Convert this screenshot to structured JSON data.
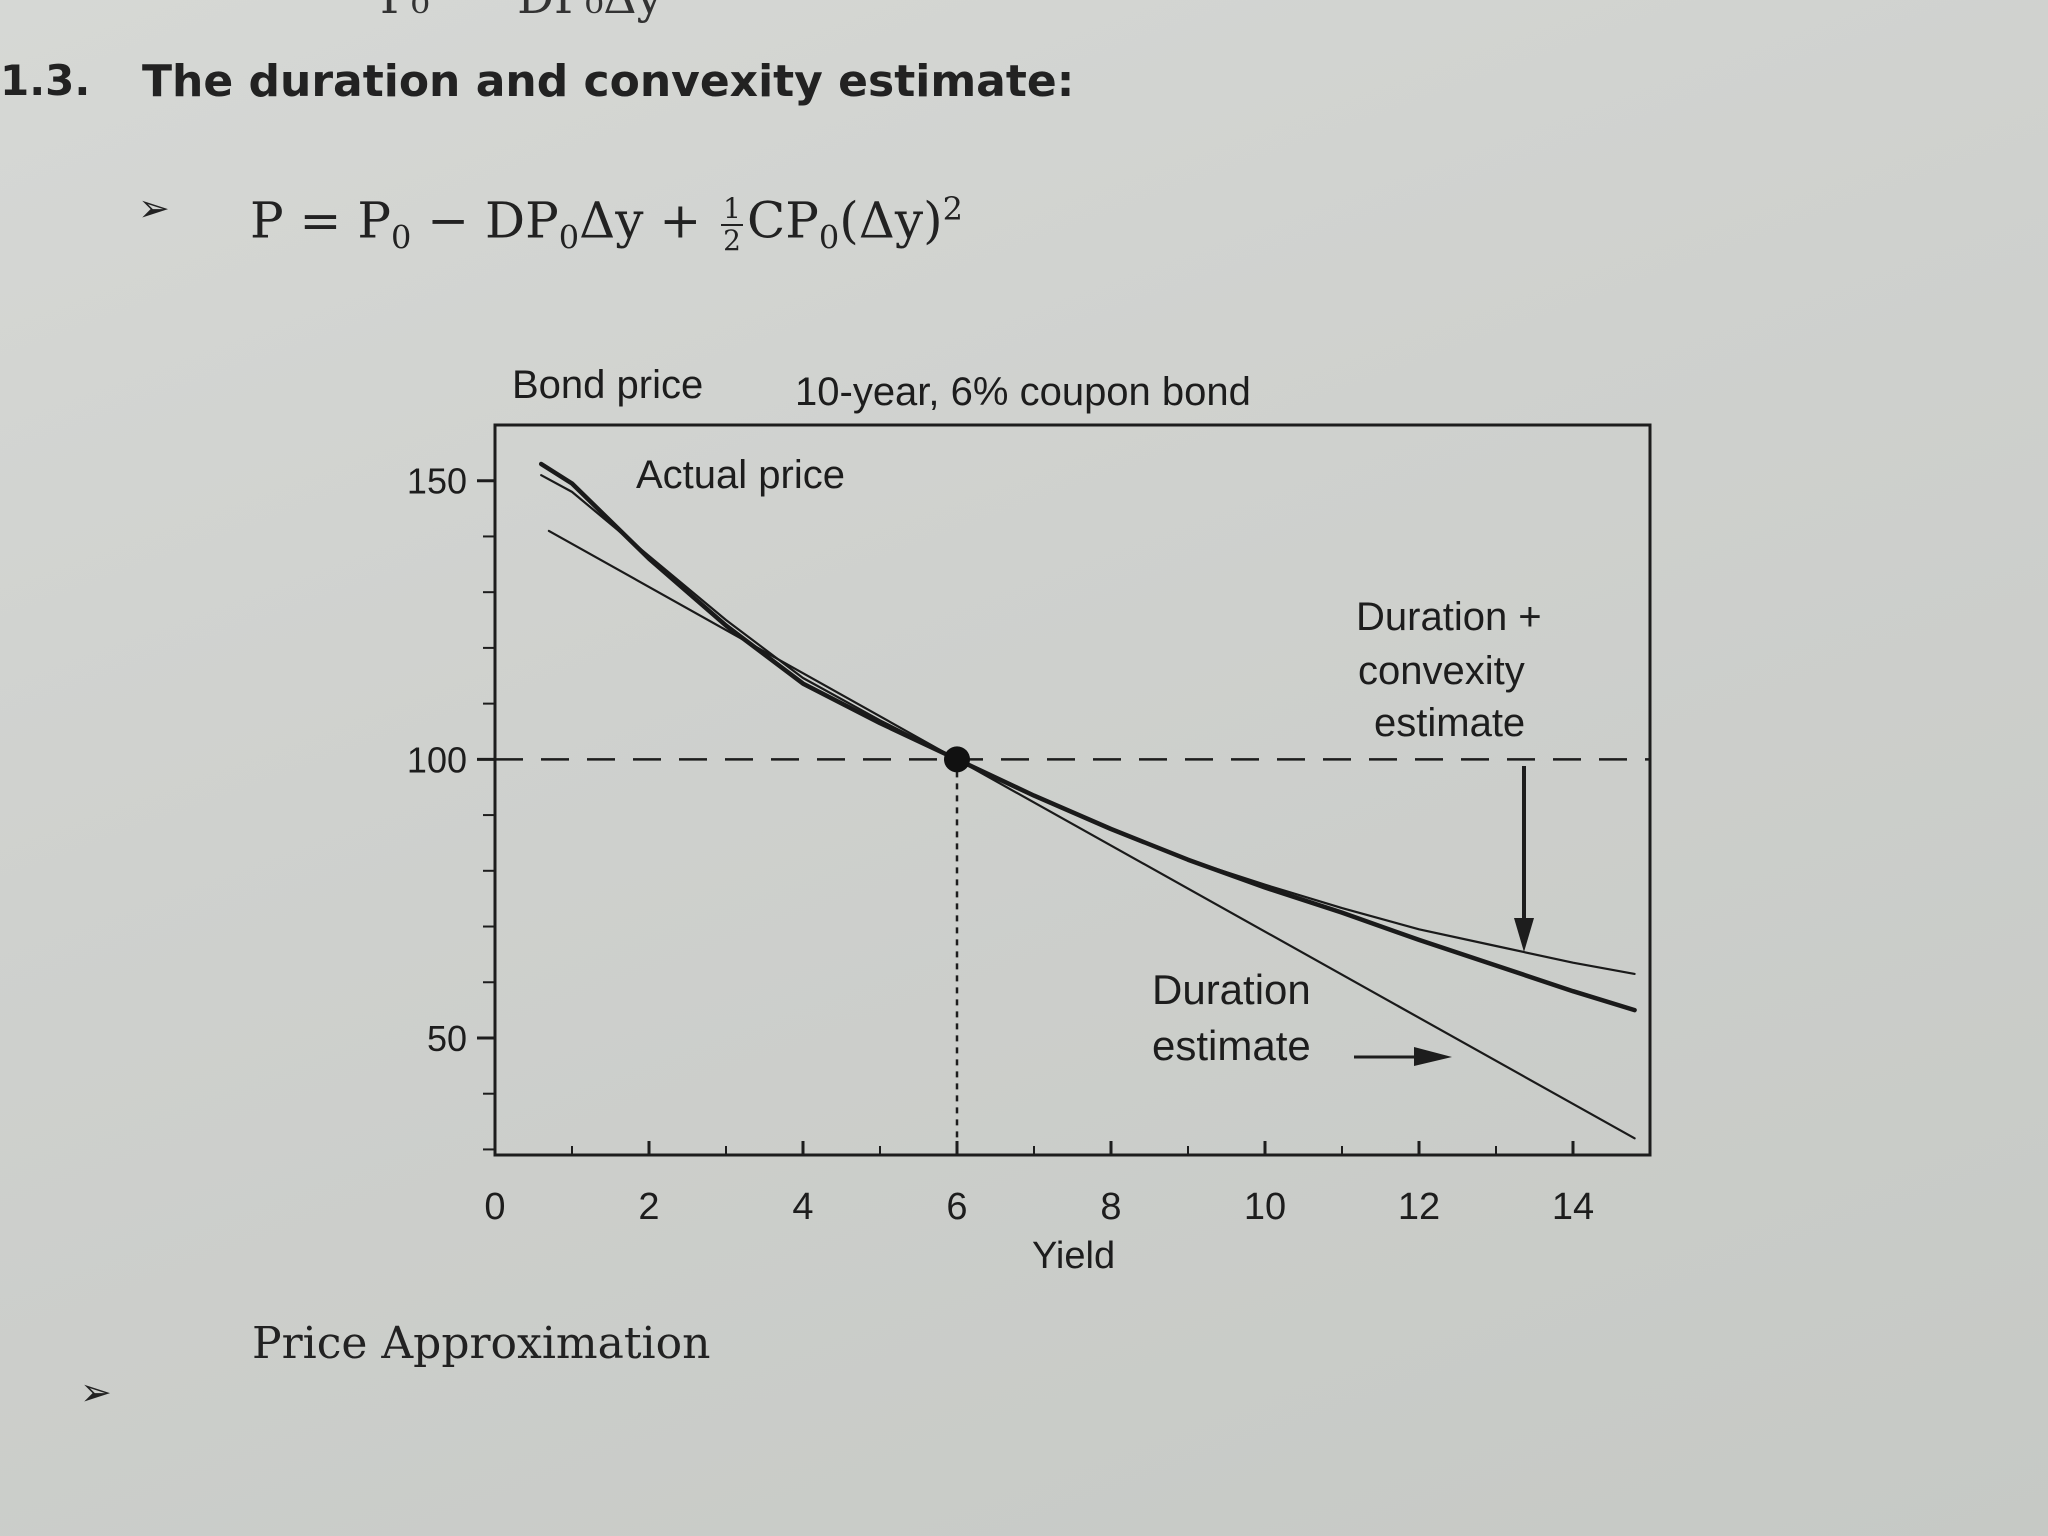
{
  "page": {
    "section_number": "1.3.",
    "section_title": "The duration and convexity estimate:",
    "formula": {
      "lhs": "P = P",
      "lhs_sub": "0",
      "minus": " − DP",
      "minus_sub": "0",
      "dy": "Δy + ",
      "frac_num": "1",
      "frac_den": "2",
      "cp": "CP",
      "cp_sub": "0",
      "tail": "(Δy)",
      "tail_sup": "2"
    },
    "caption": "Price Approximation"
  },
  "chart_data": {
    "type": "line",
    "ylabel": "Bond price",
    "title": "10-year, 6% coupon bond",
    "xlabel": "Yield",
    "x_ticks": [
      0,
      2,
      4,
      6,
      8,
      10,
      12,
      14
    ],
    "y_ticks": [
      50,
      100,
      150
    ],
    "xlim": [
      0,
      15
    ],
    "ylim": [
      29,
      160
    ],
    "reference": {
      "x": 6,
      "y": 100
    },
    "annotations": {
      "actual": "Actual price",
      "dc_line1": "Duration +",
      "dc_line2": "convexity",
      "dc_line3": "estimate",
      "d_line1": "Duration",
      "d_line2": "estimate"
    },
    "series": [
      {
        "name": "Actual price",
        "x": [
          0.6,
          1,
          2,
          3,
          4,
          5,
          6,
          7,
          8,
          9,
          10,
          11,
          12,
          13,
          14,
          14.8
        ],
        "y": [
          153,
          149.5,
          136,
          124,
          113.6,
          106.5,
          100,
          93.5,
          87.5,
          82,
          77,
          72.5,
          67.6,
          63,
          58.4,
          55
        ]
      },
      {
        "name": "Duration + convexity estimate",
        "x": [
          0.6,
          1,
          2,
          3,
          4,
          5,
          6,
          7,
          8,
          9,
          10,
          11,
          12,
          13,
          14,
          14.8
        ],
        "y": [
          151,
          148,
          136.5,
          125,
          114.6,
          107,
          100,
          93.4,
          87.4,
          82,
          77.5,
          73.3,
          69.5,
          66.5,
          63.5,
          61.5
        ]
      },
      {
        "name": "Duration estimate",
        "x": [
          0.7,
          6,
          14.8
        ],
        "y": [
          141,
          100,
          32
        ]
      }
    ]
  }
}
